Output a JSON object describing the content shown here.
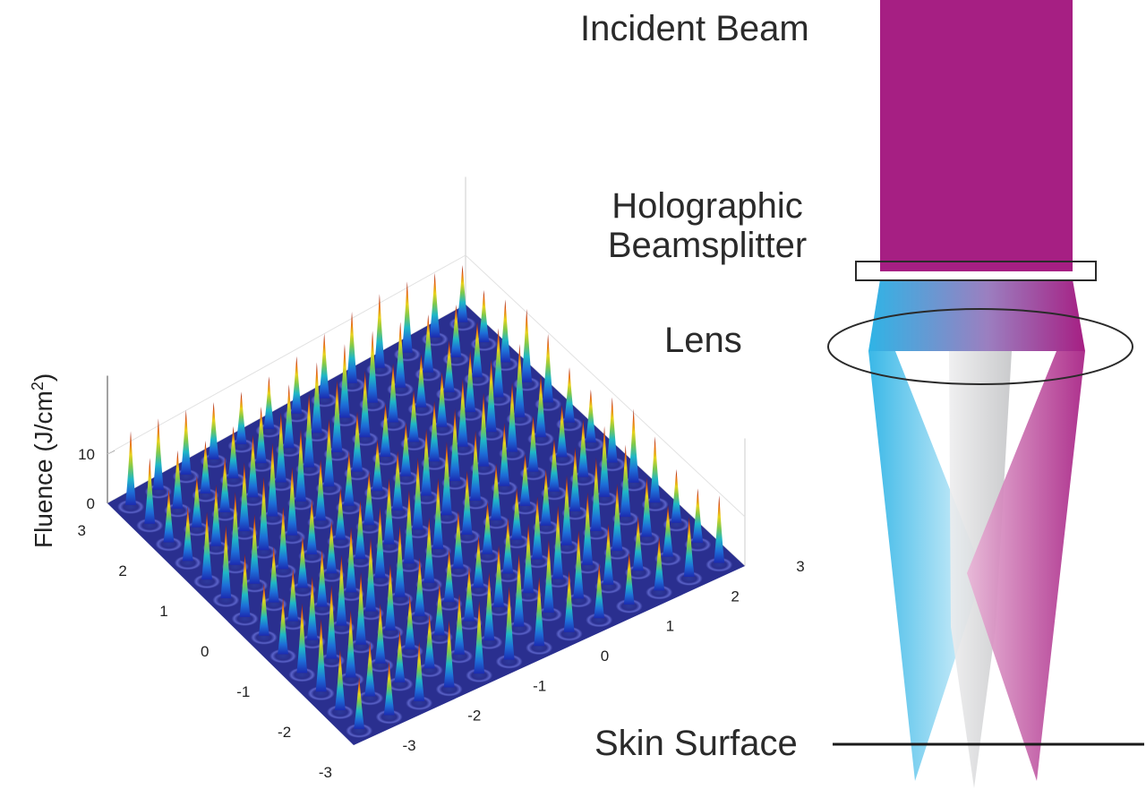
{
  "optics": {
    "incident_label": "Incident Beam",
    "splitter_label_line1": "Holographic",
    "splitter_label_line2": "Beamsplitter",
    "lens_label": "Lens",
    "skin_label": "Skin Surface",
    "colors": {
      "incident": "#a61f83",
      "left_beam": "#2fb4e6",
      "center_beam": "#cfd0d2",
      "right_beam": "#a61f83"
    }
  },
  "plot": {
    "zlabel": "Fluence (J/cm",
    "zlabel_sup": "2",
    "zlabel_close": ")",
    "z_ticks": [
      "0",
      "10"
    ],
    "x_ticks": [
      "-3",
      "-2",
      "-1",
      "0",
      "1",
      "2",
      "3"
    ],
    "y_ticks": [
      "3",
      "2",
      "1",
      "0",
      "-1",
      "-2",
      "-3"
    ],
    "colormap": "jet",
    "floor_color": "#2a2f8f"
  },
  "chart_data": {
    "type": "surface",
    "title": "",
    "zlabel": "Fluence (J/cm²)",
    "x_range": [
      -3,
      3
    ],
    "y_range": [
      -3,
      3
    ],
    "z_range": [
      0,
      15
    ],
    "grid_size": [
      13,
      13
    ],
    "peak_spacing": 0.5,
    "peak_fluence_approx": 15,
    "background_fluence": 0
  }
}
